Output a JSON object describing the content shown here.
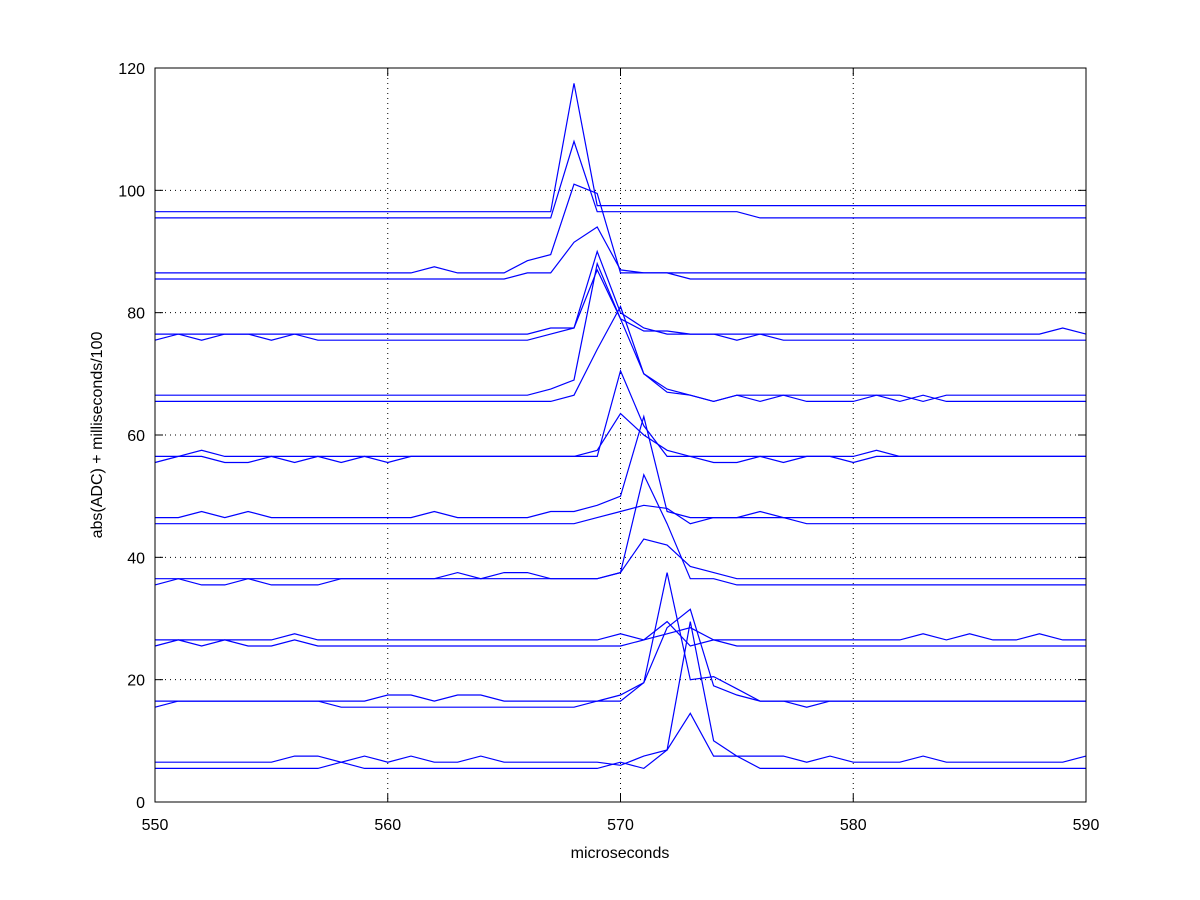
{
  "chart_data": {
    "type": "line",
    "title": "",
    "xlabel": "microseconds",
    "ylabel": "abs(ADC)  + milliseconds/100",
    "xlim": [
      550,
      590
    ],
    "ylim": [
      0,
      120
    ],
    "xticks": [
      550,
      560,
      570,
      580,
      590
    ],
    "yticks": [
      0,
      20,
      40,
      60,
      80,
      100,
      120
    ],
    "grid": true,
    "line_color": "#0000ff",
    "x": [
      550,
      551,
      552,
      553,
      554,
      555,
      556,
      557,
      558,
      559,
      560,
      561,
      562,
      563,
      564,
      565,
      566,
      567,
      568,
      569,
      570,
      571,
      572,
      573,
      574,
      575,
      576,
      577,
      578,
      579,
      580,
      581,
      582,
      583,
      584,
      585,
      586,
      587,
      588,
      589,
      590
    ],
    "series": [
      {
        "values": [
          5.5,
          5.5,
          5.5,
          5.5,
          5.5,
          5.5,
          5.5,
          5.5,
          6.5,
          5.5,
          5.5,
          5.5,
          5.5,
          5.5,
          5.5,
          5.5,
          5.5,
          5.5,
          5.5,
          5.5,
          6.5,
          5.5,
          8.5,
          14.5,
          7.5,
          7.5,
          5.5,
          5.5,
          5.5,
          5.5,
          5.5,
          5.5,
          5.5,
          5.5,
          5.5,
          5.5,
          5.5,
          5.5,
          5.5,
          5.5,
          5.5
        ]
      },
      {
        "values": [
          6.5,
          6.5,
          6.5,
          6.5,
          6.5,
          6.5,
          7.5,
          7.5,
          6.5,
          7.5,
          6.5,
          7.5,
          6.5,
          6.5,
          7.5,
          6.5,
          6.5,
          6.5,
          6.5,
          6.5,
          6.0,
          7.5,
          8.5,
          29.5,
          10.0,
          7.5,
          7.5,
          7.5,
          6.5,
          7.5,
          6.5,
          6.5,
          6.5,
          7.5,
          6.5,
          6.5,
          6.5,
          6.5,
          6.5,
          6.5,
          7.5
        ]
      },
      {
        "values": [
          15.5,
          16.5,
          16.5,
          16.5,
          16.5,
          16.5,
          16.5,
          16.5,
          15.5,
          15.5,
          15.5,
          15.5,
          15.5,
          15.5,
          15.5,
          15.5,
          15.5,
          15.5,
          15.5,
          16.5,
          16.5,
          19.5,
          37.5,
          20.0,
          20.5,
          18.5,
          16.5,
          16.5,
          16.5,
          16.5,
          16.5,
          16.5,
          16.5,
          16.5,
          16.5,
          16.5,
          16.5,
          16.5,
          16.5,
          16.5,
          16.5
        ]
      },
      {
        "values": [
          16.5,
          16.5,
          16.5,
          16.5,
          16.5,
          16.5,
          16.5,
          16.5,
          16.5,
          16.5,
          17.5,
          17.5,
          16.5,
          17.5,
          17.5,
          16.5,
          16.5,
          16.5,
          16.5,
          16.5,
          17.5,
          19.5,
          28.5,
          31.5,
          19.0,
          17.5,
          16.5,
          16.5,
          15.5,
          16.5,
          16.5,
          16.5,
          16.5,
          16.5,
          16.5,
          16.5,
          16.5,
          16.5,
          16.5,
          16.5,
          16.5
        ]
      },
      {
        "values": [
          25.5,
          26.5,
          25.5,
          26.5,
          25.5,
          25.5,
          26.5,
          25.5,
          25.5,
          25.5,
          25.5,
          25.5,
          25.5,
          25.5,
          25.5,
          25.5,
          25.5,
          25.5,
          25.5,
          25.5,
          25.5,
          26.5,
          29.5,
          25.5,
          26.5,
          25.5,
          25.5,
          25.5,
          25.5,
          25.5,
          25.5,
          25.5,
          25.5,
          25.5,
          25.5,
          25.5,
          25.5,
          25.5,
          25.5,
          25.5,
          25.5
        ]
      },
      {
        "values": [
          26.5,
          26.5,
          26.5,
          26.5,
          26.5,
          26.5,
          27.5,
          26.5,
          26.5,
          26.5,
          26.5,
          26.5,
          26.5,
          26.5,
          26.5,
          26.5,
          26.5,
          26.5,
          26.5,
          26.5,
          27.5,
          26.5,
          27.5,
          28.5,
          26.5,
          26.5,
          26.5,
          26.5,
          26.5,
          26.5,
          26.5,
          26.5,
          26.5,
          27.5,
          26.5,
          27.5,
          26.5,
          26.5,
          27.5,
          26.5,
          26.5
        ]
      },
      {
        "values": [
          35.5,
          36.5,
          35.5,
          35.5,
          36.5,
          35.5,
          35.5,
          35.5,
          36.5,
          36.5,
          36.5,
          36.5,
          36.5,
          36.5,
          36.5,
          36.5,
          36.5,
          36.5,
          36.5,
          36.5,
          37.5,
          43.0,
          42.0,
          38.5,
          37.5,
          36.5,
          36.5,
          36.5,
          36.5,
          36.5,
          36.5,
          36.5,
          36.5,
          36.5,
          36.5,
          36.5,
          36.5,
          36.5,
          36.5,
          36.5,
          36.5
        ]
      },
      {
        "values": [
          36.5,
          36.5,
          36.5,
          36.5,
          36.5,
          36.5,
          36.5,
          36.5,
          36.5,
          36.5,
          36.5,
          36.5,
          36.5,
          37.5,
          36.5,
          37.5,
          37.5,
          36.5,
          36.5,
          36.5,
          37.5,
          53.5,
          45.5,
          36.5,
          36.5,
          35.5,
          35.5,
          35.5,
          35.5,
          35.5,
          35.5,
          35.5,
          35.5,
          35.5,
          35.5,
          35.5,
          35.5,
          35.5,
          35.5,
          35.5,
          35.5
        ]
      },
      {
        "values": [
          45.5,
          45.5,
          45.5,
          45.5,
          45.5,
          45.5,
          45.5,
          45.5,
          45.5,
          45.5,
          45.5,
          45.5,
          45.5,
          45.5,
          45.5,
          45.5,
          45.5,
          45.5,
          45.5,
          46.5,
          47.5,
          48.5,
          48.0,
          45.5,
          46.5,
          46.5,
          46.5,
          46.5,
          45.5,
          45.5,
          45.5,
          45.5,
          45.5,
          45.5,
          45.5,
          45.5,
          45.5,
          45.5,
          45.5,
          45.5,
          45.5
        ]
      },
      {
        "values": [
          46.5,
          46.5,
          47.5,
          46.5,
          47.5,
          46.5,
          46.5,
          46.5,
          46.5,
          46.5,
          46.5,
          46.5,
          47.5,
          46.5,
          46.5,
          46.5,
          46.5,
          47.5,
          47.5,
          48.5,
          50.0,
          63.0,
          47.5,
          46.5,
          46.5,
          46.5,
          47.5,
          46.5,
          46.5,
          46.5,
          46.5,
          46.5,
          46.5,
          46.5,
          46.5,
          46.5,
          46.5,
          46.5,
          46.5,
          46.5,
          46.5
        ]
      },
      {
        "values": [
          55.5,
          56.5,
          56.5,
          55.5,
          55.5,
          56.5,
          55.5,
          56.5,
          56.5,
          56.5,
          56.5,
          56.5,
          56.5,
          56.5,
          56.5,
          56.5,
          56.5,
          56.5,
          56.5,
          57.5,
          63.5,
          60.0,
          57.5,
          56.5,
          55.5,
          55.5,
          56.5,
          55.5,
          56.5,
          56.5,
          55.5,
          56.5,
          56.5,
          56.5,
          56.5,
          56.5,
          56.5,
          56.5,
          56.5,
          56.5,
          56.5
        ]
      },
      {
        "values": [
          56.5,
          56.5,
          57.5,
          56.5,
          56.5,
          56.5,
          56.5,
          56.5,
          55.5,
          56.5,
          55.5,
          56.5,
          56.5,
          56.5,
          56.5,
          56.5,
          56.5,
          56.5,
          56.5,
          56.5,
          70.5,
          61.5,
          56.5,
          56.5,
          56.5,
          56.5,
          56.5,
          56.5,
          56.5,
          56.5,
          56.5,
          57.5,
          56.5,
          56.5,
          56.5,
          56.5,
          56.5,
          56.5,
          56.5,
          56.5,
          56.5
        ]
      },
      {
        "values": [
          65.5,
          65.5,
          65.5,
          65.5,
          65.5,
          65.5,
          65.5,
          65.5,
          65.5,
          65.5,
          65.5,
          65.5,
          65.5,
          65.5,
          65.5,
          65.5,
          65.5,
          65.5,
          66.5,
          74.0,
          81.0,
          70.0,
          67.5,
          66.5,
          65.5,
          66.5,
          65.5,
          66.5,
          65.5,
          65.5,
          65.5,
          66.5,
          65.5,
          66.5,
          65.5,
          65.5,
          65.5,
          65.5,
          65.5,
          65.5,
          65.5
        ]
      },
      {
        "values": [
          66.5,
          66.5,
          66.5,
          66.5,
          66.5,
          66.5,
          66.5,
          66.5,
          66.5,
          66.5,
          66.5,
          66.5,
          66.5,
          66.5,
          66.5,
          66.5,
          66.5,
          67.5,
          69.0,
          88.0,
          79.0,
          70.0,
          67.0,
          66.5,
          65.5,
          66.5,
          66.5,
          66.5,
          66.5,
          66.5,
          66.5,
          66.5,
          66.5,
          65.5,
          66.5,
          66.5,
          66.5,
          66.5,
          66.5,
          66.5,
          66.5
        ]
      },
      {
        "values": [
          75.5,
          76.5,
          75.5,
          76.5,
          76.5,
          75.5,
          76.5,
          75.5,
          75.5,
          75.5,
          75.5,
          75.5,
          75.5,
          75.5,
          75.5,
          75.5,
          75.5,
          76.5,
          77.5,
          90.0,
          80.0,
          77.5,
          76.5,
          76.5,
          76.5,
          75.5,
          76.5,
          75.5,
          75.5,
          75.5,
          75.5,
          75.5,
          75.5,
          75.5,
          75.5,
          75.5,
          75.5,
          75.5,
          75.5,
          75.5,
          75.5
        ]
      },
      {
        "values": [
          76.5,
          76.5,
          76.5,
          76.5,
          76.5,
          76.5,
          76.5,
          76.5,
          76.5,
          76.5,
          76.5,
          76.5,
          76.5,
          76.5,
          76.5,
          76.5,
          76.5,
          77.5,
          77.5,
          87.0,
          79.0,
          77.0,
          77.0,
          76.5,
          76.5,
          76.5,
          76.5,
          76.5,
          76.5,
          76.5,
          76.5,
          76.5,
          76.5,
          76.5,
          76.5,
          76.5,
          76.5,
          76.5,
          76.5,
          77.5,
          76.5
        ]
      },
      {
        "values": [
          85.5,
          85.5,
          85.5,
          85.5,
          85.5,
          85.5,
          85.5,
          85.5,
          85.5,
          85.5,
          85.5,
          85.5,
          85.5,
          85.5,
          85.5,
          85.5,
          86.5,
          86.5,
          91.5,
          94.0,
          87.0,
          86.5,
          86.5,
          85.5,
          85.5,
          85.5,
          85.5,
          85.5,
          85.5,
          85.5,
          85.5,
          85.5,
          85.5,
          85.5,
          85.5,
          85.5,
          85.5,
          85.5,
          85.5,
          85.5,
          85.5
        ]
      },
      {
        "values": [
          86.5,
          86.5,
          86.5,
          86.5,
          86.5,
          86.5,
          86.5,
          86.5,
          86.5,
          86.5,
          86.5,
          86.5,
          87.5,
          86.5,
          86.5,
          86.5,
          88.5,
          89.5,
          101.0,
          99.5,
          86.5,
          86.5,
          86.5,
          86.5,
          86.5,
          86.5,
          86.5,
          86.5,
          86.5,
          86.5,
          86.5,
          86.5,
          86.5,
          86.5,
          86.5,
          86.5,
          86.5,
          86.5,
          86.5,
          86.5,
          86.5
        ]
      },
      {
        "values": [
          95.5,
          95.5,
          95.5,
          95.5,
          95.5,
          95.5,
          95.5,
          95.5,
          95.5,
          95.5,
          95.5,
          95.5,
          95.5,
          95.5,
          95.5,
          95.5,
          95.5,
          95.5,
          108.0,
          96.5,
          96.5,
          96.5,
          96.5,
          96.5,
          96.5,
          96.5,
          95.5,
          95.5,
          95.5,
          95.5,
          95.5,
          95.5,
          95.5,
          95.5,
          95.5,
          95.5,
          95.5,
          95.5,
          95.5,
          95.5,
          95.5
        ]
      },
      {
        "values": [
          96.5,
          96.5,
          96.5,
          96.5,
          96.5,
          96.5,
          96.5,
          96.5,
          96.5,
          96.5,
          96.5,
          96.5,
          96.5,
          96.5,
          96.5,
          96.5,
          96.5,
          96.5,
          117.5,
          97.5,
          97.5,
          97.5,
          97.5,
          97.5,
          97.5,
          97.5,
          97.5,
          97.5,
          97.5,
          97.5,
          97.5,
          97.5,
          97.5,
          97.5,
          97.5,
          97.5,
          97.5,
          97.5,
          97.5,
          97.5,
          97.5
        ]
      }
    ]
  }
}
